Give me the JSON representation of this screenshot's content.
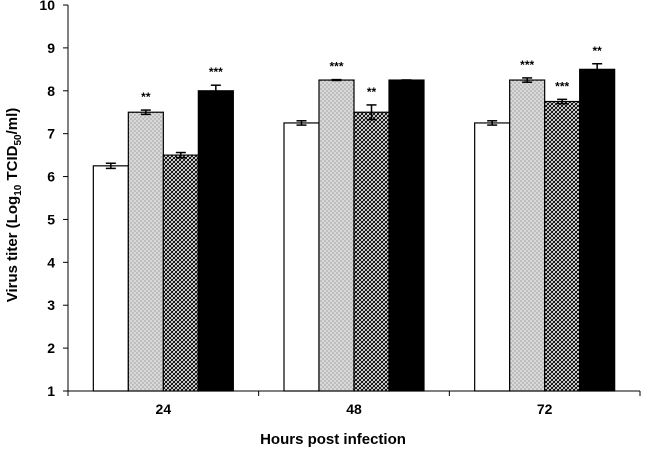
{
  "chart_data": {
    "type": "bar",
    "categories": [
      "24",
      "48",
      "72"
    ],
    "xlabel": "Hours post infection",
    "ylabel": {
      "prefix": "Virus titer (Log",
      "sub1": "10",
      "middle": " TCID",
      "sub2": "50",
      "suffix": "/ml)"
    },
    "ylim": [
      1,
      10
    ],
    "yticks": [
      "1",
      "2",
      "3",
      "4",
      "5",
      "6",
      "7",
      "8",
      "9",
      "10"
    ],
    "grid": false,
    "legend": "none",
    "series": [
      {
        "fill": "white",
        "values": [
          6.25,
          7.25,
          7.25
        ],
        "errors": [
          0.06,
          0.05,
          0.05
        ],
        "significance": [
          "",
          "",
          ""
        ]
      },
      {
        "fill": "dotted",
        "values": [
          7.5,
          8.25,
          8.25
        ],
        "errors": [
          0.05,
          0.01,
          0.05
        ],
        "significance": [
          "**",
          "***",
          "***"
        ]
      },
      {
        "fill": "hatched",
        "values": [
          6.5,
          7.5,
          7.75
        ],
        "errors": [
          0.06,
          0.17,
          0.05
        ],
        "significance": [
          "",
          "**",
          "***"
        ]
      },
      {
        "fill": "black",
        "values": [
          8.0,
          8.25,
          8.5
        ],
        "errors": [
          0.13,
          0.0,
          0.13
        ],
        "significance": [
          "***",
          "",
          "**"
        ]
      }
    ],
    "colors": {
      "bar_border": "#000000",
      "dotted_bg": "#d9d9d9",
      "black_bar": "#000000"
    }
  }
}
